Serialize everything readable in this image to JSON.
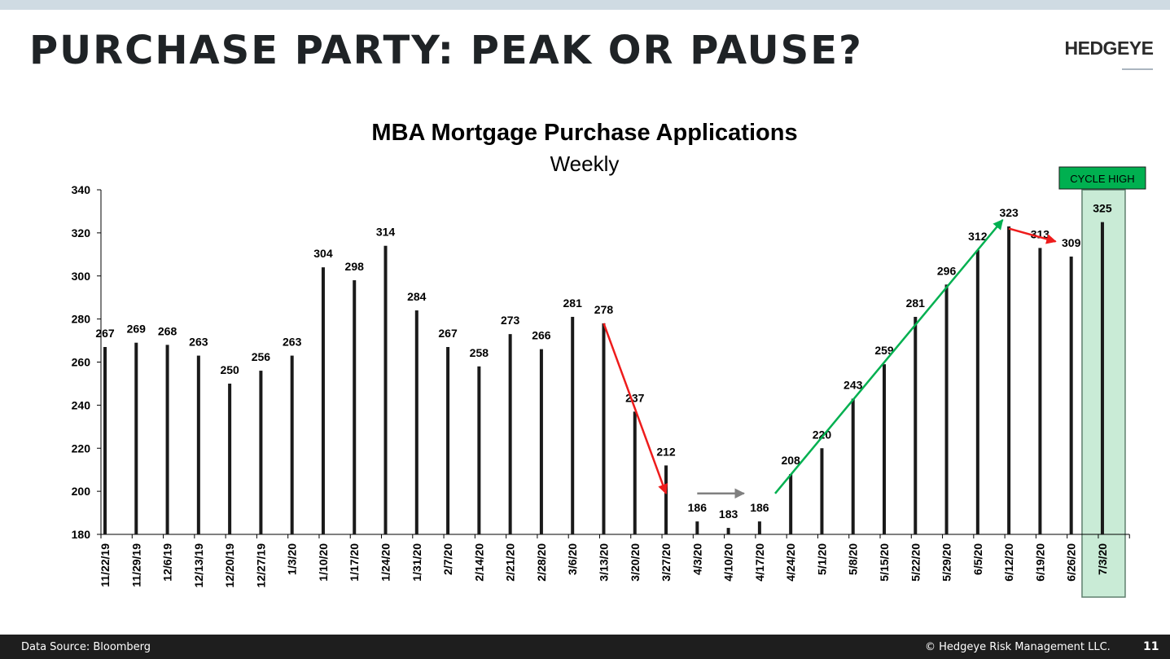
{
  "slide": {
    "title": "PURCHASE PARTY: PEAK OR PAUSE?",
    "brand": "HEDGEYE"
  },
  "footer": {
    "source": "Data Source: Bloomberg",
    "copyright": "© Hedgeye Risk Management LLC.",
    "page_number": "11"
  },
  "chart_data": {
    "type": "bar",
    "title": "MBA Mortgage Purchase Applications",
    "subtitle": "Weekly",
    "xlabel": "",
    "ylabel": "",
    "ylim": [
      180,
      340
    ],
    "yticks": [
      180,
      200,
      220,
      240,
      260,
      280,
      300,
      320,
      340
    ],
    "grid": false,
    "legend": "none",
    "categories": [
      "11/22/19",
      "11/29/19",
      "12/6/19",
      "12/13/19",
      "12/20/19",
      "12/27/19",
      "1/3/20",
      "1/10/20",
      "1/17/20",
      "1/24/20",
      "1/31/20",
      "2/7/20",
      "2/14/20",
      "2/21/20",
      "2/28/20",
      "3/6/20",
      "3/13/20",
      "3/20/20",
      "3/27/20",
      "4/3/20",
      "4/10/20",
      "4/17/20",
      "4/24/20",
      "5/1/20",
      "5/8/20",
      "5/15/20",
      "5/22/20",
      "5/29/20",
      "6/5/20",
      "6/12/20",
      "6/19/20",
      "6/26/20",
      "7/3/20"
    ],
    "values": [
      267,
      269,
      268,
      263,
      250,
      256,
      263,
      304,
      298,
      314,
      284,
      267,
      258,
      273,
      266,
      281,
      278,
      237,
      212,
      186,
      183,
      186,
      208,
      220,
      243,
      259,
      281,
      296,
      312,
      323,
      313,
      309,
      325
    ],
    "highlight": {
      "category": "7/3/20",
      "label": "CYCLE HIGH",
      "fill_color": "#c9ebd6",
      "label_bg": "#00b050"
    },
    "annotations": [
      {
        "type": "arrow",
        "color": "#ee1c1c",
        "from": [
          "3/13/20",
          278
        ],
        "to": [
          "3/27/20",
          199
        ]
      },
      {
        "type": "arrow",
        "color": "#808080",
        "from": [
          "4/3/20",
          199
        ],
        "to": [
          "4/10/20+",
          199
        ]
      },
      {
        "type": "arrow",
        "color": "#00b050",
        "from": [
          "4/17/20+",
          199
        ],
        "to": [
          "6/12/20-",
          326
        ]
      },
      {
        "type": "arrow",
        "color": "#ee1c1c",
        "from": [
          "6/12/20",
          322
        ],
        "to": [
          "6/19/20+",
          316
        ]
      }
    ],
    "colors": {
      "bar": "#1a1a1a",
      "down_arrow": "#ee1c1c",
      "flat_arrow": "#808080",
      "up_arrow": "#00b050"
    }
  }
}
